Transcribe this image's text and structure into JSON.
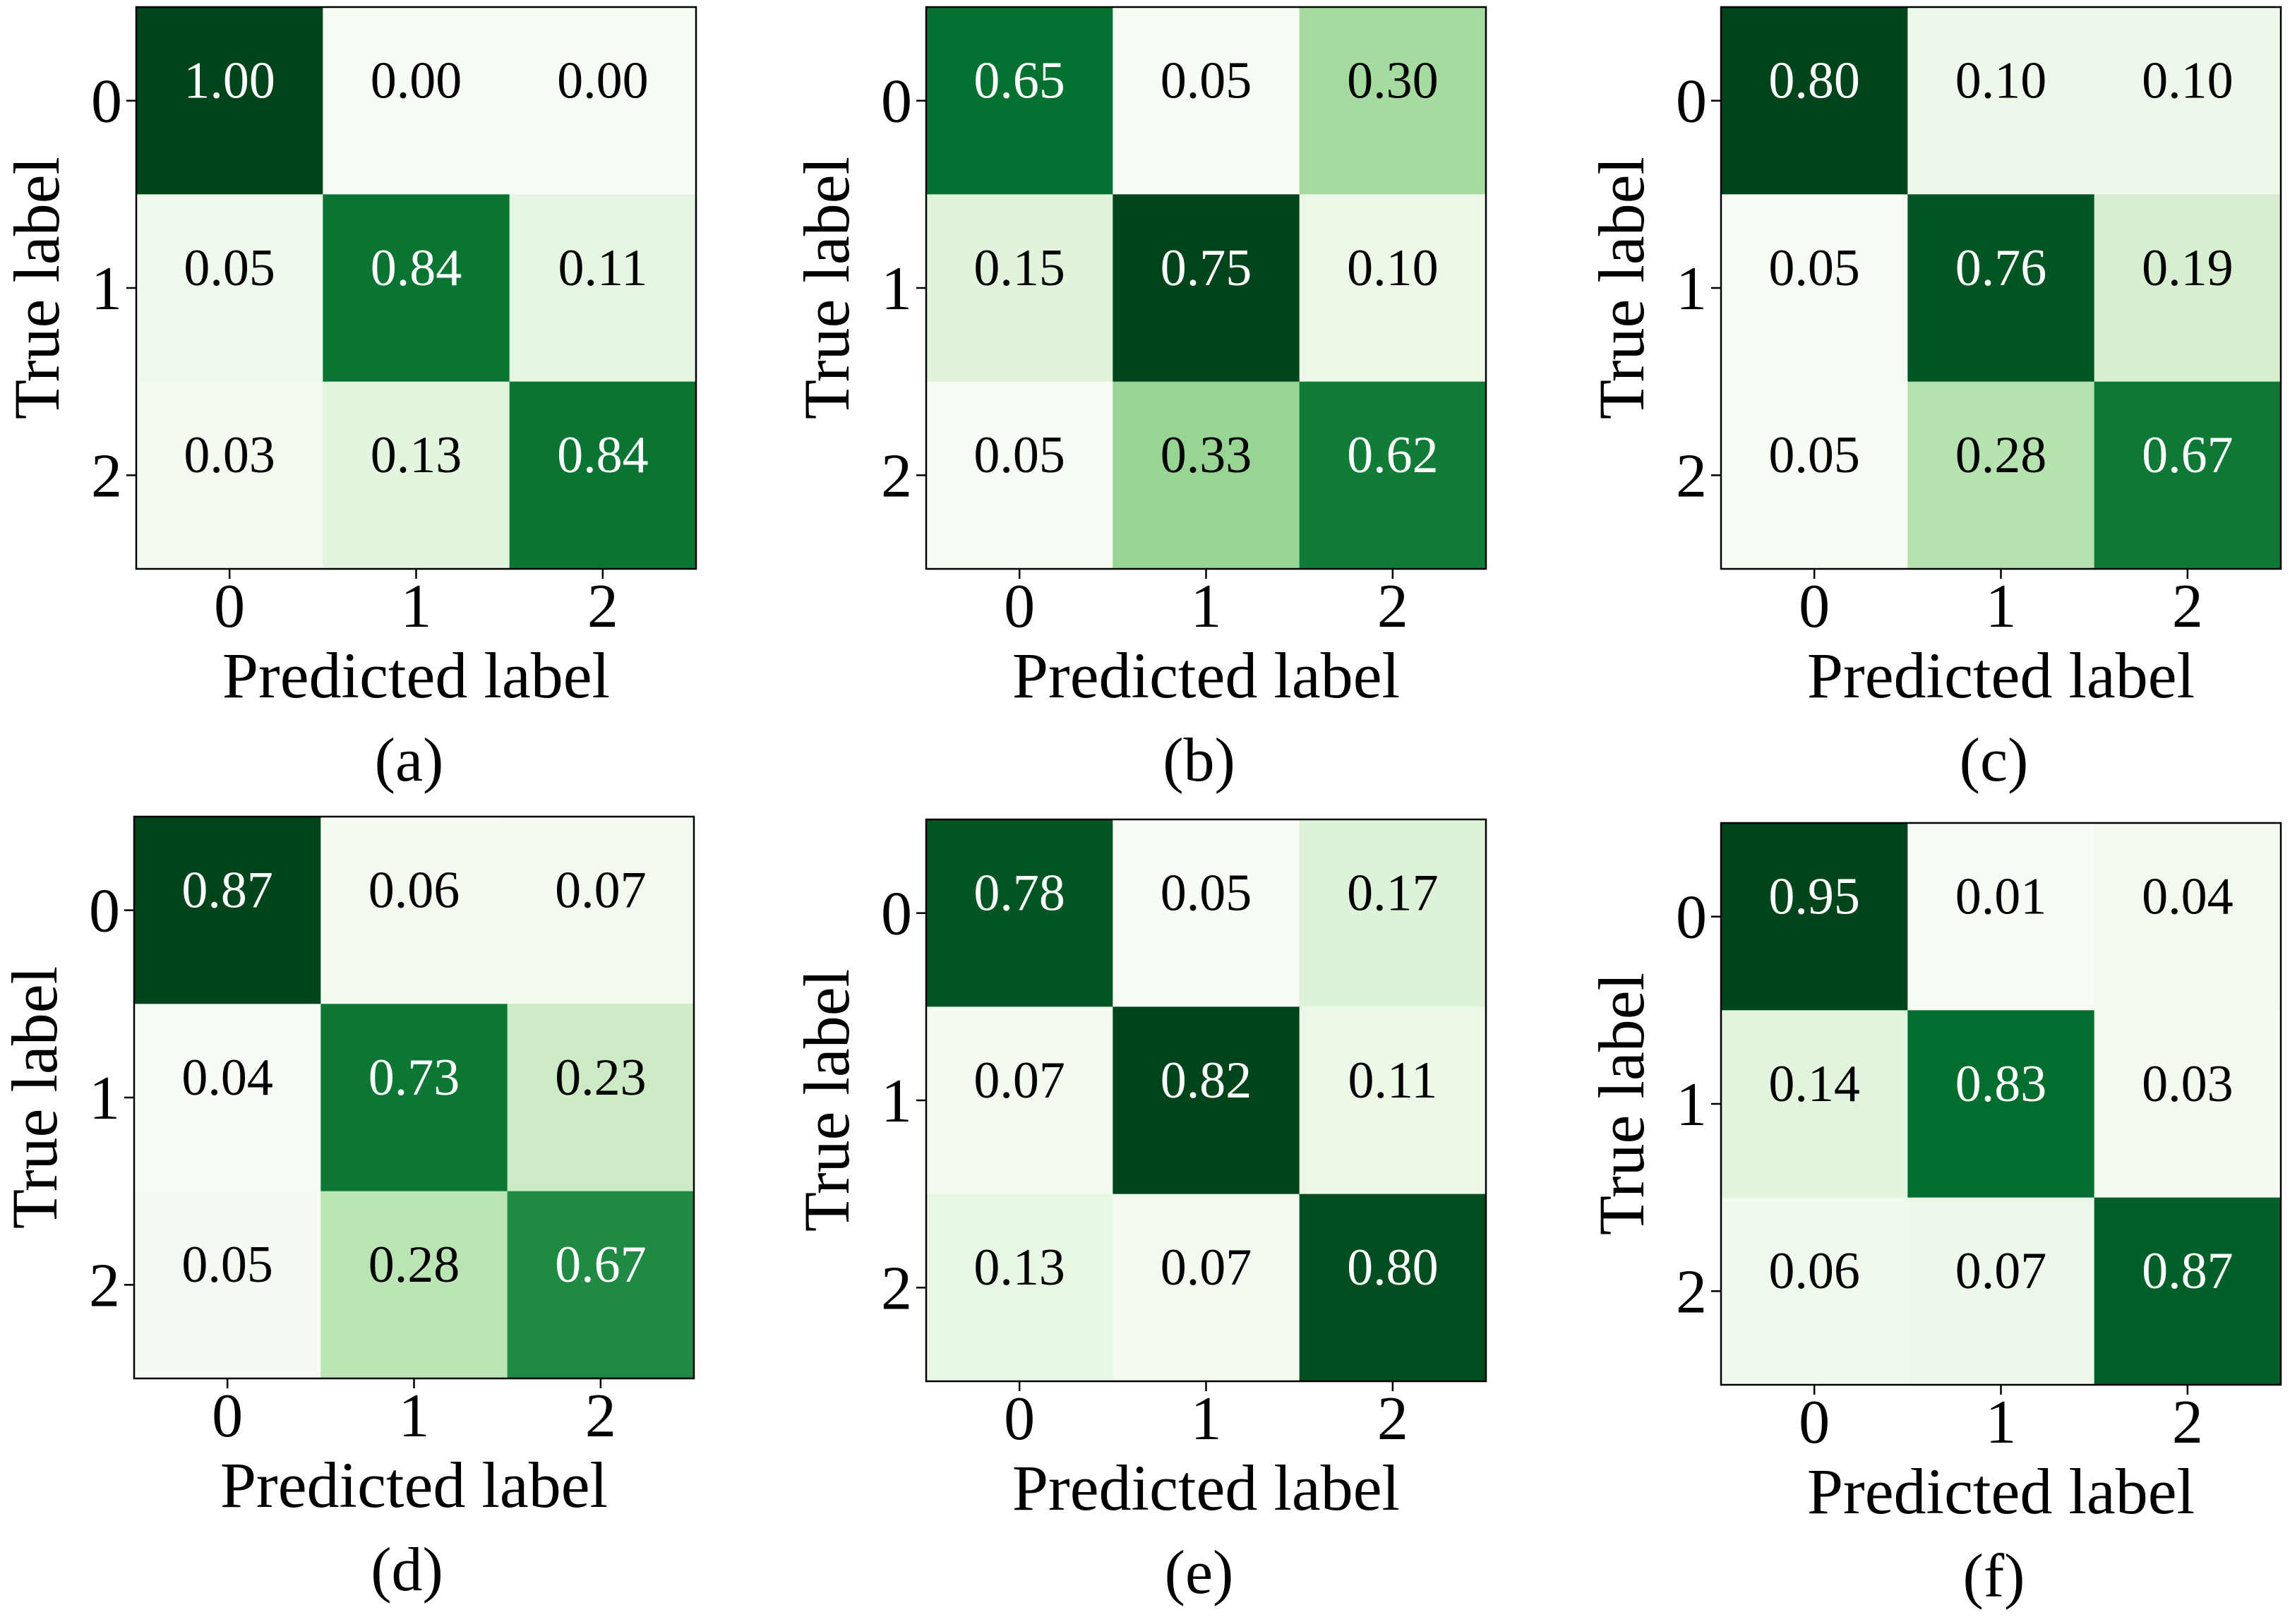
{
  "chart_data": [
    {
      "type": "heatmap",
      "panel": "(a)",
      "xlabel": "Predicted label",
      "ylabel": "True label",
      "x_ticks": [
        "0",
        "1",
        "2"
      ],
      "y_ticks": [
        "0",
        "1",
        "2"
      ],
      "values": [
        [
          1.0,
          0.0,
          0.0
        ],
        [
          0.05,
          0.84,
          0.11
        ],
        [
          0.03,
          0.13,
          0.84
        ]
      ],
      "value_labels": [
        [
          "1.00",
          "0.00",
          "0.00"
        ],
        [
          "0.05",
          "0.84",
          "0.11"
        ],
        [
          "0.03",
          "0.13",
          "0.84"
        ]
      ],
      "vrange": [
        0.0,
        1.0
      ],
      "colormap": "Greens"
    },
    {
      "type": "heatmap",
      "panel": "(b)",
      "xlabel": "Predicted label",
      "ylabel": "True label",
      "x_ticks": [
        "0",
        "1",
        "2"
      ],
      "y_ticks": [
        "0",
        "1",
        "2"
      ],
      "values": [
        [
          0.65,
          0.05,
          0.3
        ],
        [
          0.15,
          0.75,
          0.1
        ],
        [
          0.05,
          0.33,
          0.62
        ]
      ],
      "value_labels": [
        [
          "0.65",
          "0.05",
          "0.30"
        ],
        [
          "0.15",
          "0.75",
          "0.10"
        ],
        [
          "0.05",
          "0.33",
          "0.62"
        ]
      ],
      "vrange": [
        0.05,
        0.75
      ],
      "colormap": "Greens"
    },
    {
      "type": "heatmap",
      "panel": "(c)",
      "xlabel": "Predicted label",
      "ylabel": "True label",
      "x_ticks": [
        "0",
        "1",
        "2"
      ],
      "y_ticks": [
        "0",
        "1",
        "2"
      ],
      "values": [
        [
          0.8,
          0.1,
          0.1
        ],
        [
          0.05,
          0.76,
          0.19
        ],
        [
          0.05,
          0.28,
          0.67
        ]
      ],
      "value_labels": [
        [
          "0.80",
          "0.10",
          "0.10"
        ],
        [
          "0.05",
          "0.76",
          "0.19"
        ],
        [
          "0.05",
          "0.28",
          "0.67"
        ]
      ],
      "vrange": [
        0.05,
        0.8
      ],
      "colormap": "Greens"
    },
    {
      "type": "heatmap",
      "panel": "(d)",
      "xlabel": "Predicted label",
      "ylabel": "True label",
      "x_ticks": [
        "0",
        "1",
        "2"
      ],
      "y_ticks": [
        "0",
        "1",
        "2"
      ],
      "values": [
        [
          0.87,
          0.06,
          0.07
        ],
        [
          0.04,
          0.73,
          0.23
        ],
        [
          0.05,
          0.28,
          0.67
        ]
      ],
      "value_labels": [
        [
          "0.87",
          "0.06",
          "0.07"
        ],
        [
          "0.04",
          "0.73",
          "0.23"
        ],
        [
          "0.05",
          "0.28",
          "0.67"
        ]
      ],
      "vrange": [
        0.04,
        0.87
      ],
      "colormap": "Greens"
    },
    {
      "type": "heatmap",
      "panel": "(e)",
      "xlabel": "Predicted label",
      "ylabel": "True label",
      "x_ticks": [
        "0",
        "1",
        "2"
      ],
      "y_ticks": [
        "0",
        "1",
        "2"
      ],
      "values": [
        [
          0.78,
          0.05,
          0.17
        ],
        [
          0.07,
          0.82,
          0.11
        ],
        [
          0.13,
          0.07,
          0.8
        ]
      ],
      "value_labels": [
        [
          "0.78",
          "0.05",
          "0.17"
        ],
        [
          "0.07",
          "0.82",
          "0.11"
        ],
        [
          "0.13",
          "0.07",
          "0.80"
        ]
      ],
      "vrange": [
        0.05,
        0.82
      ],
      "colormap": "Greens"
    },
    {
      "type": "heatmap",
      "panel": "(f)",
      "xlabel": "Predicted label",
      "ylabel": "True label",
      "x_ticks": [
        "0",
        "1",
        "2"
      ],
      "y_ticks": [
        "0",
        "1",
        "2"
      ],
      "values": [
        [
          0.95,
          0.01,
          0.04
        ],
        [
          0.14,
          0.83,
          0.03
        ],
        [
          0.06,
          0.07,
          0.87
        ]
      ],
      "value_labels": [
        [
          "0.95",
          "0.01",
          "0.04"
        ],
        [
          "0.14",
          "0.83",
          "0.03"
        ],
        [
          "0.06",
          "0.07",
          "0.87"
        ]
      ],
      "vrange": [
        0.01,
        0.95
      ],
      "colormap": "Greens"
    }
  ],
  "colors": {
    "background": "#ffffff",
    "axis": "#000000",
    "text_dark": "#000000",
    "text_light": "#ffffff",
    "greens": [
      "#f7fcf5",
      "#e5f5e0",
      "#c7e9c0",
      "#a1d99b",
      "#74c476",
      "#41ab5d",
      "#238b45",
      "#006d2c",
      "#00441b"
    ]
  }
}
